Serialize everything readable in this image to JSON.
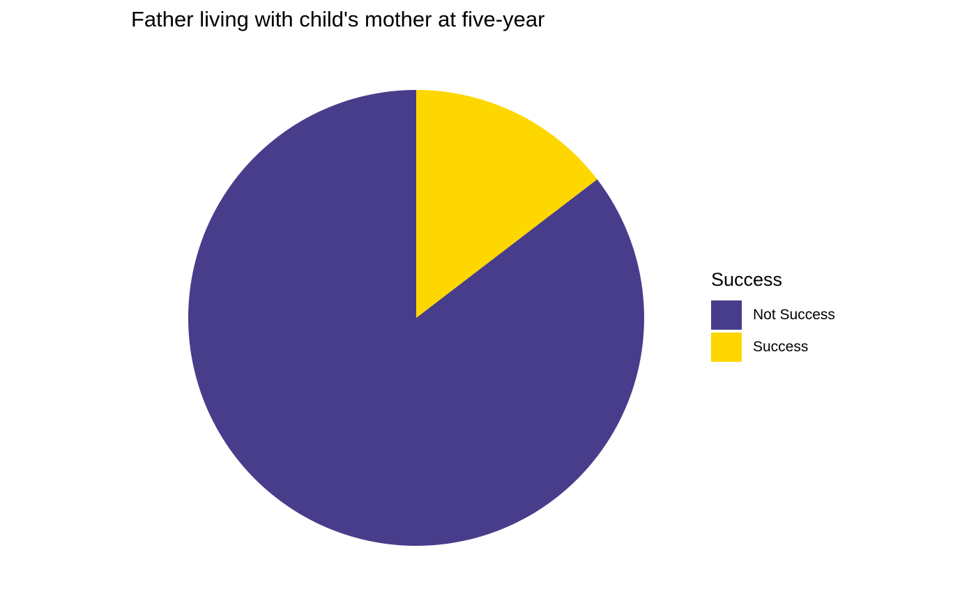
{
  "chart_data": {
    "type": "pie",
    "title": "Father living with child's mother at five-year",
    "legend_title": "Success",
    "legend_position": "right",
    "slices": [
      {
        "label": "Not Success",
        "value": 85.4,
        "color": "#483D8B"
      },
      {
        "label": "Success",
        "value": 14.6,
        "color": "#FFD700"
      }
    ],
    "start": "12 o'clock",
    "direction": "counterclockwise"
  }
}
